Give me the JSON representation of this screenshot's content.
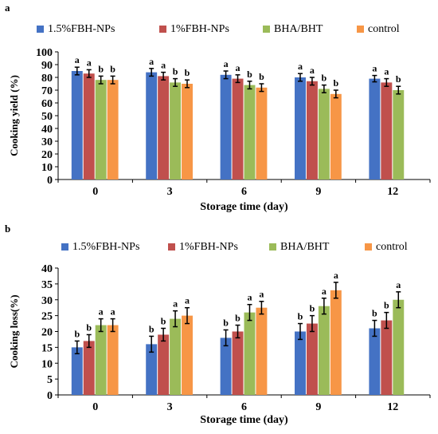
{
  "series_colors": [
    "#4472C4",
    "#C0504D",
    "#9BBB59",
    "#F79646"
  ],
  "chart_data": [
    {
      "panel_label": "a",
      "type": "bar",
      "title": "",
      "xlabel": "Storage time  (day)",
      "ylabel": "Cooking yield (%)",
      "ylim": [
        0,
        100
      ],
      "yticks": [
        0,
        10,
        20,
        30,
        40,
        50,
        60,
        70,
        80,
        90,
        100
      ],
      "legend_position": "top",
      "grid": false,
      "categories": [
        "0",
        "3",
        "6",
        "9",
        "12"
      ],
      "series": [
        {
          "name": "1.5%FBH-NPs",
          "values": [
            85,
            84,
            82,
            80,
            79
          ],
          "errors": [
            3,
            3,
            3,
            3,
            2.5
          ],
          "letters": [
            "a",
            "a",
            "a",
            "a",
            "a"
          ]
        },
        {
          "name": "1%FBH-NPs",
          "values": [
            83,
            81,
            79,
            77,
            76
          ],
          "errors": [
            3,
            3,
            3,
            3,
            3
          ],
          "letters": [
            "a",
            "a",
            "a",
            "a",
            "a"
          ]
        },
        {
          "name": "BHA/BHT",
          "values": [
            78,
            76,
            74,
            71,
            70
          ],
          "errors": [
            3,
            3,
            3,
            3,
            3
          ],
          "letters": [
            "b",
            "b",
            "b",
            "b",
            "b"
          ]
        },
        {
          "name": "control",
          "values": [
            78,
            75,
            72,
            67,
            null
          ],
          "errors": [
            3,
            3,
            3,
            3,
            null
          ],
          "letters": [
            "b",
            "b",
            "b",
            "b",
            ""
          ]
        }
      ]
    },
    {
      "panel_label": "b",
      "type": "bar",
      "title": "",
      "xlabel": "Storage time  (day)",
      "ylabel": "Cooking loss(%)",
      "ylim": [
        0,
        40
      ],
      "yticks": [
        0,
        5,
        10,
        15,
        20,
        25,
        30,
        35,
        40
      ],
      "legend_position": "top",
      "grid": false,
      "categories": [
        "0",
        "3",
        "6",
        "9",
        "12"
      ],
      "series": [
        {
          "name": "1.5%FBH-NPs",
          "values": [
            15,
            16,
            18,
            20,
            21
          ],
          "errors": [
            2,
            2.5,
            2.5,
            2.5,
            2.5
          ],
          "letters": [
            "b",
            "b",
            "b",
            "b",
            "b"
          ]
        },
        {
          "name": "1%FBH-NPs",
          "values": [
            17,
            19,
            20,
            22.5,
            23.5
          ],
          "errors": [
            2,
            2,
            2,
            2.5,
            2.5
          ],
          "letters": [
            "b",
            "b",
            "b",
            "b",
            "b"
          ]
        },
        {
          "name": "BHA/BHT",
          "values": [
            22,
            24,
            26,
            28,
            30
          ],
          "errors": [
            2,
            2.5,
            2.5,
            2.5,
            2.5
          ],
          "letters": [
            "a",
            "a",
            "a",
            "a",
            "a"
          ]
        },
        {
          "name": "control",
          "values": [
            22,
            25,
            27.5,
            33,
            null
          ],
          "errors": [
            2,
            2.5,
            2,
            2.5,
            null
          ],
          "letters": [
            "a",
            "a",
            "a",
            "a",
            ""
          ]
        }
      ]
    }
  ]
}
